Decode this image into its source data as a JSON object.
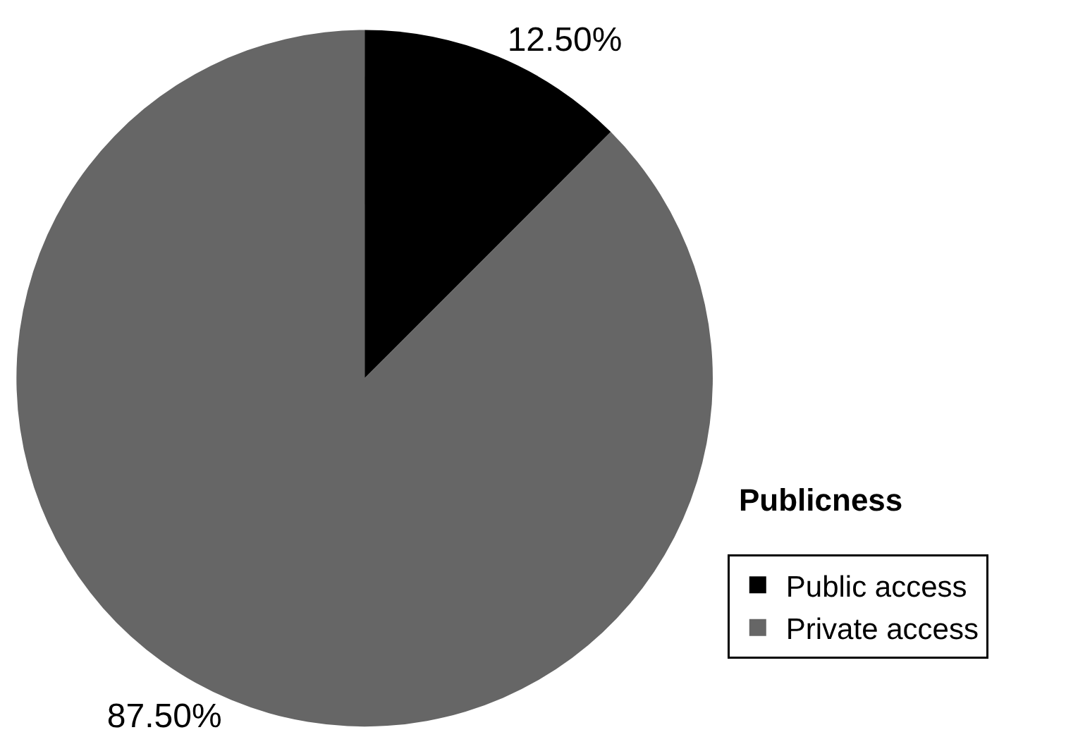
{
  "chart_data": {
    "type": "pie",
    "categories": [
      "Public access",
      "Private access"
    ],
    "values": [
      12.5,
      87.5
    ],
    "colors": [
      "#000000",
      "#666666"
    ],
    "value_labels": [
      "12.50%",
      "87.50%"
    ],
    "legend_title": "Publicness",
    "legend": "bottom right"
  }
}
